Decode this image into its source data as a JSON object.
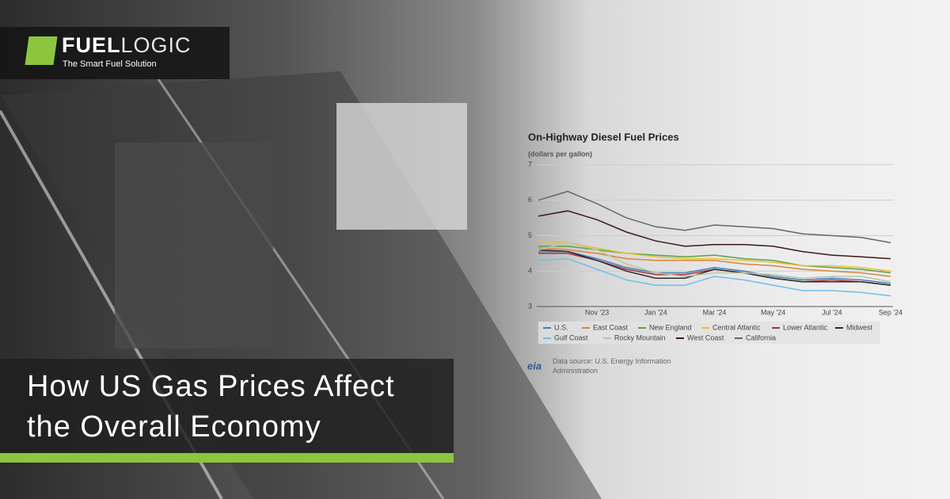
{
  "brand": {
    "name_part1": "FUEL",
    "name_part2": "LOGIC",
    "tagline": "The Smart Fuel Solution"
  },
  "headline": "How US Gas Prices Affect the Overall Economy",
  "chart_data": {
    "type": "line",
    "title": "On-Highway Diesel Fuel Prices",
    "subtitle": "(dollars per gallon)",
    "categories": [
      null,
      null,
      "Nov '23",
      null,
      "Jan '24",
      null,
      "Mar '24",
      null,
      "May '24",
      null,
      "Jul '24",
      null,
      "Sep '24"
    ],
    "ylim": [
      3,
      7
    ],
    "yticks": [
      3,
      4,
      5,
      6,
      7
    ],
    "grid": true,
    "series": [
      {
        "name": "U.S.",
        "color": "#3f7fc0",
        "values": [
          4.55,
          4.55,
          4.35,
          4.1,
          3.95,
          3.95,
          4.1,
          4.0,
          3.85,
          3.75,
          3.8,
          3.75,
          3.65
        ]
      },
      {
        "name": "East Coast",
        "color": "#d9843a",
        "values": [
          4.65,
          4.6,
          4.5,
          4.35,
          4.3,
          4.3,
          4.3,
          4.2,
          4.15,
          4.05,
          4.0,
          3.95,
          3.85
        ]
      },
      {
        "name": "New England",
        "color": "#5aa04a",
        "values": [
          4.7,
          4.7,
          4.6,
          4.5,
          4.45,
          4.4,
          4.45,
          4.35,
          4.3,
          4.15,
          4.1,
          4.05,
          3.95
        ]
      },
      {
        "name": "Central Atlantic",
        "color": "#e6c12e",
        "values": [
          4.85,
          4.8,
          4.65,
          4.5,
          4.4,
          4.35,
          4.35,
          4.3,
          4.25,
          4.15,
          4.15,
          4.1,
          4.0
        ]
      },
      {
        "name": "Lower Atlantic",
        "color": "#a8323a",
        "values": [
          4.5,
          4.5,
          4.3,
          4.05,
          3.9,
          3.9,
          4.05,
          3.95,
          3.8,
          3.7,
          3.75,
          3.7,
          3.6
        ]
      },
      {
        "name": "Midwest",
        "color": "#2b2b2b",
        "values": [
          4.6,
          4.55,
          4.3,
          4.0,
          3.8,
          3.8,
          4.05,
          3.95,
          3.8,
          3.7,
          3.7,
          3.7,
          3.6
        ]
      },
      {
        "name": "Gulf Coast",
        "color": "#6ec0e8",
        "values": [
          4.3,
          4.35,
          4.05,
          3.75,
          3.6,
          3.6,
          3.85,
          3.75,
          3.6,
          3.45,
          3.45,
          3.4,
          3.3
        ]
      },
      {
        "name": "Rocky Mountain",
        "color": "#b9c7a0",
        "values": [
          4.6,
          4.8,
          4.6,
          4.2,
          3.95,
          3.85,
          3.95,
          3.95,
          3.9,
          3.8,
          3.85,
          3.85,
          3.7
        ]
      },
      {
        "name": "West Coast",
        "color": "#3a1a1a",
        "values": [
          5.55,
          5.7,
          5.45,
          5.1,
          4.85,
          4.7,
          4.75,
          4.75,
          4.7,
          4.55,
          4.45,
          4.4,
          4.35
        ]
      },
      {
        "name": "California",
        "color": "#666666",
        "values": [
          6.0,
          6.25,
          5.9,
          5.5,
          5.25,
          5.15,
          5.3,
          5.25,
          5.2,
          5.05,
          5.0,
          4.95,
          4.8
        ]
      }
    ],
    "source": "Data source: U.S. Energy Information Administration",
    "source_logo": "eia"
  }
}
